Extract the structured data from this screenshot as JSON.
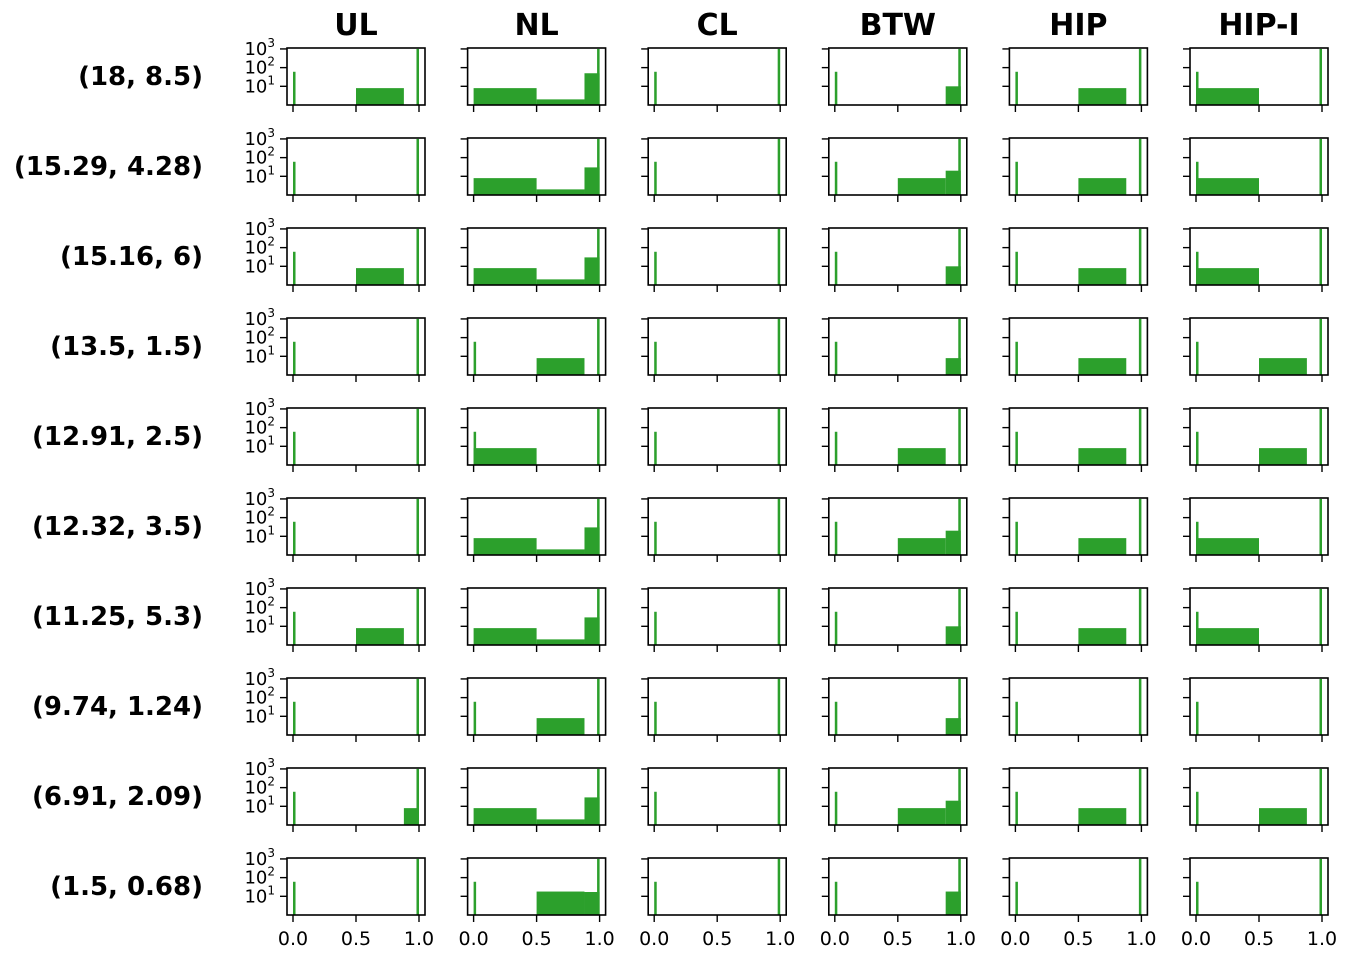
{
  "chart_data": {
    "type": "histogram-grid",
    "x_ticks": [
      "0.0",
      "0.5",
      "1.0"
    ],
    "y_ticks": [
      "10",
      "10",
      "10"
    ],
    "y_tick_exponents": [
      "1",
      "2",
      "3"
    ],
    "y_scale": "log",
    "xlim": [
      0,
      1
    ],
    "bar_color": "#2ca02c",
    "columns": [
      "UL",
      "NL",
      "CL",
      "BTW",
      "HIP",
      "HIP-I"
    ],
    "rows": [
      "(18, 8.5)",
      "(15.29, 4.28)",
      "(15.16, 6)",
      "(13.5, 1.5)",
      "(12.91, 2.5)",
      "(12.32, 3.5)",
      "(11.25, 5.3)",
      "(9.74, 1.24)",
      "(6.91, 2.09)",
      "(1.5, 0.68)"
    ],
    "panels": [
      [
        {
          "bars": [
            [
              0,
              0.02,
              60
            ],
            [
              0.5,
              0.88,
              8
            ],
            [
              0.98,
              1.0,
              1000
            ]
          ]
        },
        {
          "bars": [
            [
              0,
              0.5,
              8
            ],
            [
              0.5,
              0.88,
              2
            ],
            [
              0.88,
              1.0,
              50
            ],
            [
              0.98,
              1.0,
              1000
            ]
          ]
        },
        {
          "bars": [
            [
              0,
              0.02,
              60
            ],
            [
              0.98,
              1.0,
              1000
            ]
          ]
        },
        {
          "bars": [
            [
              0,
              0.02,
              60
            ],
            [
              0.88,
              1.0,
              10
            ],
            [
              0.98,
              1.0,
              1000
            ]
          ]
        },
        {
          "bars": [
            [
              0,
              0.02,
              60
            ],
            [
              0.5,
              0.88,
              8
            ],
            [
              0.98,
              1.0,
              1000
            ]
          ]
        },
        {
          "bars": [
            [
              0,
              0.02,
              60
            ],
            [
              0,
              0.5,
              8
            ],
            [
              0.98,
              1.0,
              1000
            ]
          ]
        }
      ],
      [
        {
          "bars": [
            [
              0,
              0.02,
              60
            ],
            [
              0.98,
              1.0,
              1000
            ]
          ]
        },
        {
          "bars": [
            [
              0,
              0.5,
              8
            ],
            [
              0.5,
              0.88,
              2
            ],
            [
              0.88,
              1.0,
              30
            ],
            [
              0.98,
              1.0,
              1000
            ]
          ]
        },
        {
          "bars": [
            [
              0,
              0.02,
              60
            ],
            [
              0.98,
              1.0,
              1000
            ]
          ]
        },
        {
          "bars": [
            [
              0,
              0.02,
              60
            ],
            [
              0.5,
              0.88,
              8
            ],
            [
              0.88,
              1.0,
              20
            ],
            [
              0.98,
              1.0,
              1000
            ]
          ]
        },
        {
          "bars": [
            [
              0,
              0.02,
              60
            ],
            [
              0.5,
              0.88,
              8
            ],
            [
              0.98,
              1.0,
              1000
            ]
          ]
        },
        {
          "bars": [
            [
              0,
              0.02,
              60
            ],
            [
              0,
              0.5,
              8
            ],
            [
              0.98,
              1.0,
              1000
            ]
          ]
        }
      ],
      [
        {
          "bars": [
            [
              0,
              0.02,
              60
            ],
            [
              0.5,
              0.88,
              8
            ],
            [
              0.98,
              1.0,
              1000
            ]
          ]
        },
        {
          "bars": [
            [
              0,
              0.5,
              8
            ],
            [
              0.5,
              0.88,
              2
            ],
            [
              0.88,
              1.0,
              30
            ],
            [
              0.98,
              1.0,
              1000
            ]
          ]
        },
        {
          "bars": [
            [
              0,
              0.02,
              60
            ],
            [
              0.98,
              1.0,
              1000
            ]
          ]
        },
        {
          "bars": [
            [
              0,
              0.02,
              60
            ],
            [
              0.88,
              1.0,
              10
            ],
            [
              0.98,
              1.0,
              1000
            ]
          ]
        },
        {
          "bars": [
            [
              0,
              0.02,
              60
            ],
            [
              0.5,
              0.88,
              8
            ],
            [
              0.98,
              1.0,
              1000
            ]
          ]
        },
        {
          "bars": [
            [
              0,
              0.02,
              60
            ],
            [
              0,
              0.5,
              8
            ],
            [
              0.98,
              1.0,
              1000
            ]
          ]
        }
      ],
      [
        {
          "bars": [
            [
              0,
              0.02,
              60
            ],
            [
              0.98,
              1.0,
              1000
            ]
          ]
        },
        {
          "bars": [
            [
              0,
              0.02,
              60
            ],
            [
              0.5,
              0.88,
              8
            ],
            [
              0.98,
              1.0,
              1000
            ]
          ]
        },
        {
          "bars": [
            [
              0,
              0.02,
              60
            ],
            [
              0.98,
              1.0,
              1000
            ]
          ]
        },
        {
          "bars": [
            [
              0,
              0.02,
              60
            ],
            [
              0.88,
              1.0,
              8
            ],
            [
              0.98,
              1.0,
              1000
            ]
          ]
        },
        {
          "bars": [
            [
              0,
              0.02,
              60
            ],
            [
              0.5,
              0.88,
              8
            ],
            [
              0.98,
              1.0,
              1000
            ]
          ]
        },
        {
          "bars": [
            [
              0,
              0.02,
              60
            ],
            [
              0.5,
              0.88,
              8
            ],
            [
              0.98,
              1.0,
              1000
            ]
          ]
        }
      ],
      [
        {
          "bars": [
            [
              0,
              0.02,
              60
            ],
            [
              0.98,
              1.0,
              1000
            ]
          ]
        },
        {
          "bars": [
            [
              0,
              0.02,
              60
            ],
            [
              0,
              0.5,
              8
            ],
            [
              0.98,
              1.0,
              1000
            ]
          ]
        },
        {
          "bars": [
            [
              0,
              0.02,
              60
            ],
            [
              0.98,
              1.0,
              1000
            ]
          ]
        },
        {
          "bars": [
            [
              0,
              0.02,
              60
            ],
            [
              0.5,
              0.88,
              8
            ],
            [
              0.98,
              1.0,
              1000
            ]
          ]
        },
        {
          "bars": [
            [
              0,
              0.02,
              60
            ],
            [
              0.5,
              0.88,
              8
            ],
            [
              0.98,
              1.0,
              1000
            ]
          ]
        },
        {
          "bars": [
            [
              0,
              0.02,
              60
            ],
            [
              0.5,
              0.88,
              8
            ],
            [
              0.98,
              1.0,
              1000
            ]
          ]
        }
      ],
      [
        {
          "bars": [
            [
              0,
              0.02,
              60
            ],
            [
              0.98,
              1.0,
              1000
            ]
          ]
        },
        {
          "bars": [
            [
              0,
              0.5,
              8
            ],
            [
              0.5,
              0.88,
              2
            ],
            [
              0.88,
              1.0,
              30
            ],
            [
              0.98,
              1.0,
              1000
            ]
          ]
        },
        {
          "bars": [
            [
              0,
              0.02,
              60
            ],
            [
              0.98,
              1.0,
              1000
            ]
          ]
        },
        {
          "bars": [
            [
              0,
              0.02,
              60
            ],
            [
              0.5,
              0.88,
              8
            ],
            [
              0.88,
              1.0,
              20
            ],
            [
              0.98,
              1.0,
              1000
            ]
          ]
        },
        {
          "bars": [
            [
              0,
              0.02,
              60
            ],
            [
              0.5,
              0.88,
              8
            ],
            [
              0.98,
              1.0,
              1000
            ]
          ]
        },
        {
          "bars": [
            [
              0,
              0.02,
              60
            ],
            [
              0,
              0.5,
              8
            ],
            [
              0.98,
              1.0,
              1000
            ]
          ]
        }
      ],
      [
        {
          "bars": [
            [
              0,
              0.02,
              60
            ],
            [
              0.5,
              0.88,
              8
            ],
            [
              0.98,
              1.0,
              1000
            ]
          ]
        },
        {
          "bars": [
            [
              0,
              0.5,
              8
            ],
            [
              0.5,
              0.88,
              2
            ],
            [
              0.88,
              1.0,
              30
            ],
            [
              0.98,
              1.0,
              1000
            ]
          ]
        },
        {
          "bars": [
            [
              0,
              0.02,
              60
            ],
            [
              0.98,
              1.0,
              1000
            ]
          ]
        },
        {
          "bars": [
            [
              0,
              0.02,
              60
            ],
            [
              0.88,
              1.0,
              10
            ],
            [
              0.98,
              1.0,
              1000
            ]
          ]
        },
        {
          "bars": [
            [
              0,
              0.02,
              60
            ],
            [
              0.5,
              0.88,
              8
            ],
            [
              0.98,
              1.0,
              1000
            ]
          ]
        },
        {
          "bars": [
            [
              0,
              0.02,
              60
            ],
            [
              0,
              0.5,
              8
            ],
            [
              0.98,
              1.0,
              1000
            ]
          ]
        }
      ],
      [
        {
          "bars": [
            [
              0,
              0.02,
              60
            ],
            [
              0.98,
              1.0,
              1000
            ]
          ]
        },
        {
          "bars": [
            [
              0,
              0.02,
              60
            ],
            [
              0.5,
              0.88,
              8
            ],
            [
              0.98,
              1.0,
              1000
            ]
          ]
        },
        {
          "bars": [
            [
              0,
              0.02,
              60
            ],
            [
              0.98,
              1.0,
              1000
            ]
          ]
        },
        {
          "bars": [
            [
              0,
              0.02,
              60
            ],
            [
              0.88,
              1.0,
              8
            ],
            [
              0.98,
              1.0,
              1000
            ]
          ]
        },
        {
          "bars": [
            [
              0,
              0.02,
              60
            ],
            [
              0.98,
              1.0,
              1000
            ]
          ]
        },
        {
          "bars": [
            [
              0,
              0.02,
              60
            ],
            [
              0.98,
              1.0,
              1000
            ]
          ]
        }
      ],
      [
        {
          "bars": [
            [
              0,
              0.02,
              60
            ],
            [
              0.88,
              1.0,
              8
            ],
            [
              0.98,
              1.0,
              1000
            ]
          ]
        },
        {
          "bars": [
            [
              0,
              0.5,
              8
            ],
            [
              0.5,
              0.88,
              2
            ],
            [
              0.88,
              1.0,
              30
            ],
            [
              0.98,
              1.0,
              1000
            ]
          ]
        },
        {
          "bars": [
            [
              0,
              0.02,
              60
            ],
            [
              0.98,
              1.0,
              1000
            ]
          ]
        },
        {
          "bars": [
            [
              0,
              0.02,
              60
            ],
            [
              0.5,
              0.88,
              8
            ],
            [
              0.88,
              1.0,
              20
            ],
            [
              0.98,
              1.0,
              1000
            ]
          ]
        },
        {
          "bars": [
            [
              0,
              0.02,
              60
            ],
            [
              0.5,
              0.88,
              8
            ],
            [
              0.98,
              1.0,
              1000
            ]
          ]
        },
        {
          "bars": [
            [
              0,
              0.02,
              60
            ],
            [
              0.5,
              0.88,
              8
            ],
            [
              0.98,
              1.0,
              1000
            ]
          ]
        }
      ],
      [
        {
          "bars": [
            [
              0,
              0.02,
              60
            ],
            [
              0.98,
              1.0,
              1000
            ]
          ]
        },
        {
          "bars": [
            [
              0,
              0.02,
              60
            ],
            [
              0.5,
              0.88,
              18
            ],
            [
              0.88,
              1.0,
              17
            ],
            [
              0.98,
              1.0,
              1000
            ]
          ]
        },
        {
          "bars": [
            [
              0,
              0.02,
              60
            ],
            [
              0.98,
              1.0,
              1000
            ]
          ]
        },
        {
          "bars": [
            [
              0,
              0.02,
              60
            ],
            [
              0.88,
              1.0,
              18
            ],
            [
              0.98,
              1.0,
              1000
            ]
          ]
        },
        {
          "bars": [
            [
              0,
              0.02,
              60
            ],
            [
              0.98,
              1.0,
              1000
            ]
          ]
        },
        {
          "bars": [
            [
              0,
              0.02,
              60
            ],
            [
              0.98,
              1.0,
              1000
            ]
          ]
        }
      ]
    ]
  }
}
